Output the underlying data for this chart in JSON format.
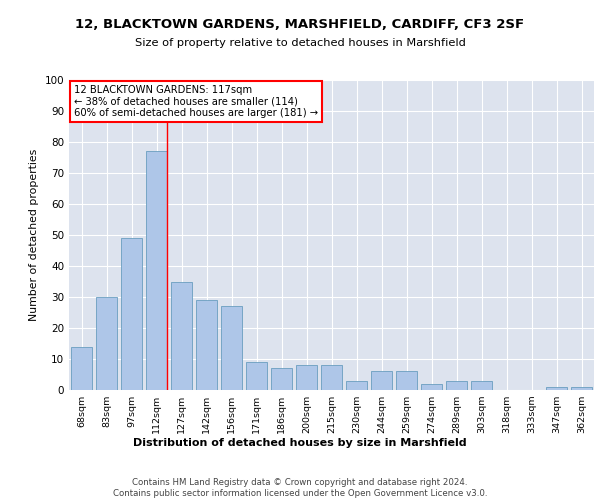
{
  "title1": "12, BLACKTOWN GARDENS, MARSHFIELD, CARDIFF, CF3 2SF",
  "title2": "Size of property relative to detached houses in Marshfield",
  "xlabel": "Distribution of detached houses by size in Marshfield",
  "ylabel": "Number of detached properties",
  "categories": [
    "68sqm",
    "83sqm",
    "97sqm",
    "112sqm",
    "127sqm",
    "142sqm",
    "156sqm",
    "171sqm",
    "186sqm",
    "200sqm",
    "215sqm",
    "230sqm",
    "244sqm",
    "259sqm",
    "274sqm",
    "289sqm",
    "303sqm",
    "318sqm",
    "333sqm",
    "347sqm",
    "362sqm"
  ],
  "values": [
    14,
    30,
    49,
    77,
    35,
    29,
    27,
    9,
    7,
    8,
    8,
    3,
    6,
    6,
    2,
    3,
    3,
    0,
    0,
    1,
    1
  ],
  "bar_color": "#aec6e8",
  "bar_edge_color": "#6a9ec0",
  "background_color": "#dde3ee",
  "grid_color": "#ffffff",
  "vline_color": "red",
  "annotation_text": "12 BLACKTOWN GARDENS: 117sqm\n← 38% of detached houses are smaller (114)\n60% of semi-detached houses are larger (181) →",
  "annotation_box_color": "white",
  "annotation_box_edge_color": "red",
  "ylim": [
    0,
    100
  ],
  "yticks": [
    0,
    10,
    20,
    30,
    40,
    50,
    60,
    70,
    80,
    90,
    100
  ],
  "footnote": "Contains HM Land Registry data © Crown copyright and database right 2024.\nContains public sector information licensed under the Open Government Licence v3.0."
}
